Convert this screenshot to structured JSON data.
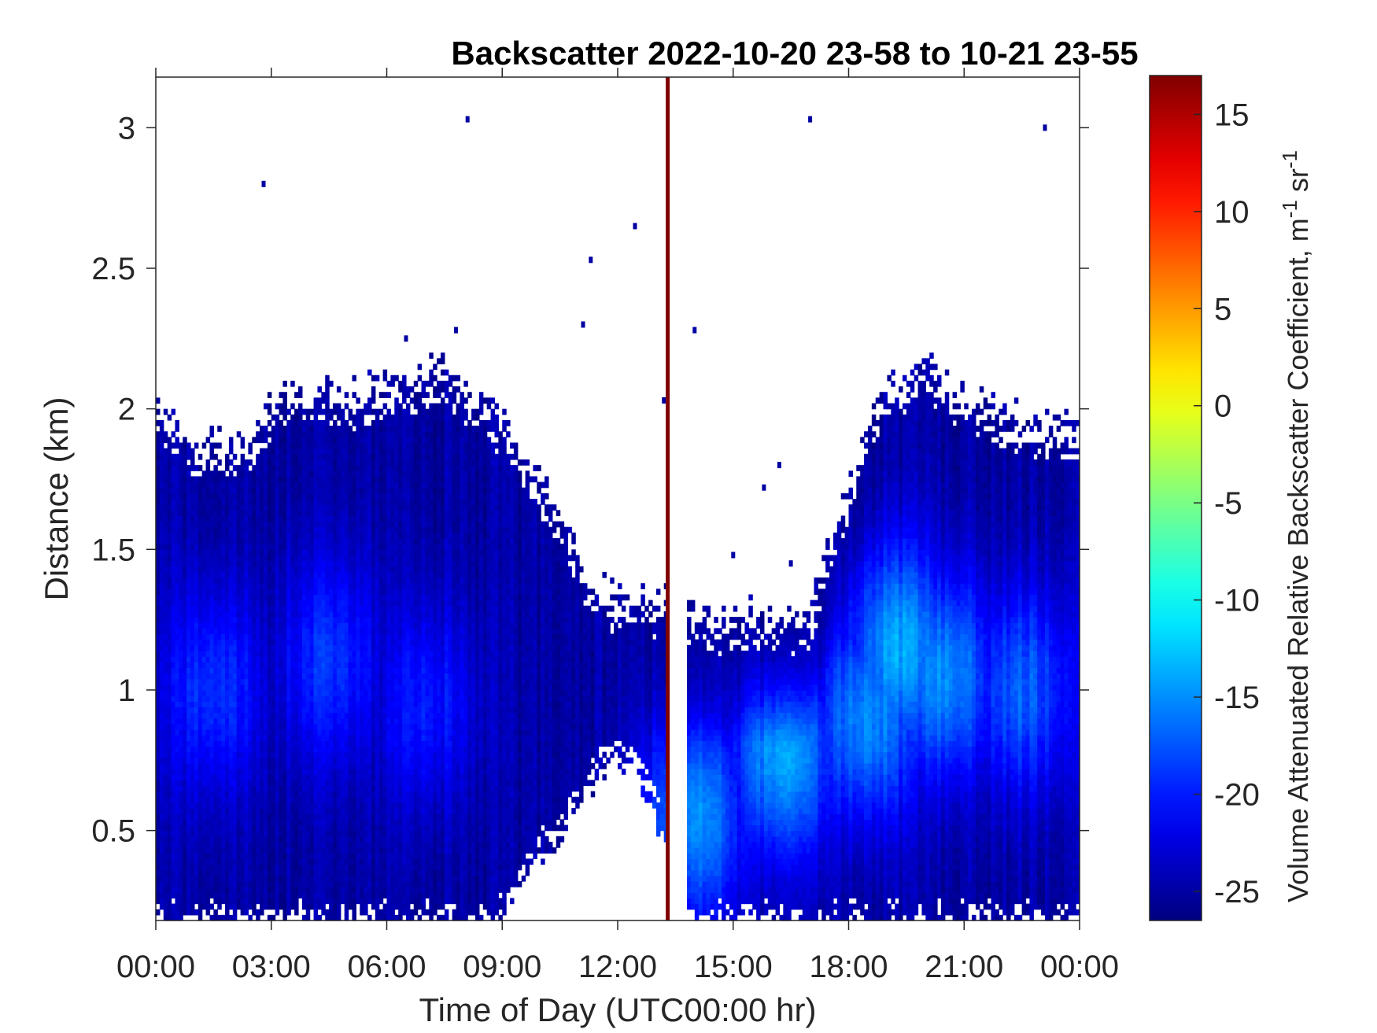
{
  "chart_data": {
    "type": "heatmap",
    "title": "Backscatter 2022-10-20 23-58 to 10-21 23-55",
    "xlabel": "Time of Day (UTC00:00 hr)",
    "ylabel": "Distance (km)",
    "xlim_hours": [
      0,
      24
    ],
    "ylim_km": [
      0.18,
      3.18
    ],
    "x_ticks": [
      {
        "hour": 0,
        "label": "00:00"
      },
      {
        "hour": 3,
        "label": "03:00"
      },
      {
        "hour": 6,
        "label": "06:00"
      },
      {
        "hour": 9,
        "label": "09:00"
      },
      {
        "hour": 12,
        "label": "12:00"
      },
      {
        "hour": 15,
        "label": "15:00"
      },
      {
        "hour": 18,
        "label": "18:00"
      },
      {
        "hour": 21,
        "label": "21:00"
      },
      {
        "hour": 24,
        "label": "00:00"
      }
    ],
    "y_ticks": [
      {
        "value": 0.5,
        "label": "0.5"
      },
      {
        "value": 1,
        "label": "1"
      },
      {
        "value": 1.5,
        "label": "1.5"
      },
      {
        "value": 2,
        "label": "2"
      },
      {
        "value": 2.5,
        "label": "2.5"
      },
      {
        "value": 3,
        "label": "3"
      }
    ],
    "colorbar": {
      "label_parts": [
        "Volume Attenuated Relative Backscatter Coefficient, m",
        "-1",
        " sr",
        "-1"
      ],
      "range": [
        -26.5,
        17
      ],
      "colormap": "jet",
      "ticks": [
        {
          "value": -25,
          "label": "-25"
        },
        {
          "value": -20,
          "label": "-20"
        },
        {
          "value": -15,
          "label": "-15"
        },
        {
          "value": -10,
          "label": "-10"
        },
        {
          "value": -5,
          "label": "-5"
        },
        {
          "value": 0,
          "label": "0"
        },
        {
          "value": 5,
          "label": "5"
        },
        {
          "value": 10,
          "label": "10"
        },
        {
          "value": 15,
          "label": "15"
        }
      ]
    },
    "cloud_top_km": [
      [
        0.0,
        2.02
      ],
      [
        0.5,
        1.95
      ],
      [
        1.0,
        1.88
      ],
      [
        1.5,
        1.88
      ],
      [
        2.0,
        1.87
      ],
      [
        2.5,
        1.9
      ],
      [
        3.0,
        2.0
      ],
      [
        3.5,
        2.08
      ],
      [
        4.0,
        2.06
      ],
      [
        4.5,
        2.07
      ],
      [
        5.0,
        2.04
      ],
      [
        5.5,
        2.06
      ],
      [
        6.0,
        2.1
      ],
      [
        6.5,
        2.09
      ],
      [
        7.0,
        2.12
      ],
      [
        7.5,
        2.16
      ],
      [
        8.0,
        2.05
      ],
      [
        8.5,
        2.0
      ],
      [
        9.0,
        1.95
      ],
      [
        9.5,
        1.85
      ],
      [
        10.0,
        1.72
      ],
      [
        10.5,
        1.6
      ],
      [
        11.0,
        1.45
      ],
      [
        11.5,
        1.35
      ],
      [
        12.0,
        1.32
      ],
      [
        12.5,
        1.32
      ],
      [
        13.0,
        1.3
      ],
      [
        13.3,
        1.3
      ],
      [
        13.5,
        1.28
      ],
      [
        14.0,
        1.27
      ],
      [
        14.5,
        1.25
      ],
      [
        15.0,
        1.25
      ],
      [
        15.5,
        1.27
      ],
      [
        16.0,
        1.26
      ],
      [
        16.5,
        1.24
      ],
      [
        17.0,
        1.27
      ],
      [
        17.5,
        1.52
      ],
      [
        18.0,
        1.72
      ],
      [
        18.5,
        1.97
      ],
      [
        19.0,
        2.09
      ],
      [
        19.5,
        2.11
      ],
      [
        20.0,
        2.17
      ],
      [
        20.5,
        2.09
      ],
      [
        21.0,
        2.04
      ],
      [
        21.5,
        2.02
      ],
      [
        22.0,
        1.98
      ],
      [
        22.5,
        1.95
      ],
      [
        23.0,
        1.93
      ],
      [
        23.5,
        1.94
      ],
      [
        24.0,
        1.93
      ]
    ],
    "cloud_base_km": [
      [
        0.0,
        0.18
      ],
      [
        8.8,
        0.18
      ],
      [
        9.2,
        0.25
      ],
      [
        9.8,
        0.4
      ],
      [
        10.5,
        0.5
      ],
      [
        11.0,
        0.62
      ],
      [
        11.5,
        0.72
      ],
      [
        12.0,
        0.78
      ],
      [
        12.5,
        0.74
      ],
      [
        13.0,
        0.58
      ],
      [
        13.3,
        0.4
      ],
      [
        13.6,
        0.18
      ],
      [
        24.0,
        0.18
      ]
    ],
    "gap_hours": [
      13.3,
      13.8
    ],
    "marker_line_hour": 13.3,
    "intensity_peaks": [
      {
        "hour": 1.5,
        "km": 1.0,
        "value": -19
      },
      {
        "hour": 4.5,
        "km": 1.1,
        "value": -19
      },
      {
        "hour": 7.0,
        "km": 0.95,
        "value": -20
      },
      {
        "hour": 14.0,
        "km": 0.55,
        "value": -15
      },
      {
        "hour": 16.3,
        "km": 0.78,
        "value": -14
      },
      {
        "hour": 18.5,
        "km": 0.9,
        "value": -15
      },
      {
        "hour": 19.3,
        "km": 1.15,
        "value": -14
      },
      {
        "hour": 20.5,
        "km": 1.05,
        "value": -15
      },
      {
        "hour": 22.5,
        "km": 1.0,
        "value": -17
      }
    ],
    "background_value": -25,
    "isolated_pixels": [
      [
        2.8,
        2.8
      ],
      [
        8.1,
        3.03
      ],
      [
        11.3,
        2.53
      ],
      [
        11.1,
        2.3
      ],
      [
        12.45,
        2.65
      ],
      [
        14.0,
        2.28
      ],
      [
        17.0,
        3.03
      ],
      [
        23.1,
        3.0
      ],
      [
        13.2,
        2.03
      ],
      [
        15.0,
        1.48
      ],
      [
        16.2,
        1.8
      ],
      [
        15.8,
        1.72
      ],
      [
        16.5,
        1.45
      ],
      [
        7.8,
        2.28
      ],
      [
        6.5,
        2.25
      ]
    ],
    "grid": false
  }
}
